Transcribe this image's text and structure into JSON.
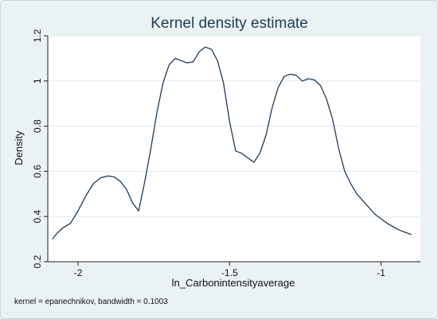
{
  "chart_data": {
    "type": "line",
    "title": "Kernel density estimate",
    "xlabel": "ln_Carbonintensityaverage",
    "ylabel": "Density",
    "note": "kernel = epanechnikov, bandwidth = 0.1003",
    "xlim": [
      -2.1,
      -0.87
    ],
    "ylim": [
      0.2,
      1.2
    ],
    "xticks": [
      -2,
      -1.5,
      -1
    ],
    "xtick_labels": [
      "-2",
      "-1.5",
      "-1"
    ],
    "yticks": [
      0.2,
      0.4,
      0.6,
      0.8,
      1,
      1.2
    ],
    "ytick_labels": [
      "0.2",
      "0.4",
      "0.6",
      "0.8",
      "1",
      "1.2"
    ],
    "grid": true,
    "legend": "none",
    "colors": {
      "plot_background": "#ffffff",
      "outer_background": "#eaf2f3",
      "gridline": "#e4eaef",
      "line": "#1f3c57",
      "title": "#1f3c57"
    },
    "series": [
      {
        "x": [
          -2.085,
          -2.07,
          -2.05,
          -2.025,
          -2.0,
          -1.975,
          -1.95,
          -1.925,
          -1.9,
          -1.88,
          -1.86,
          -1.84,
          -1.82,
          -1.8,
          -1.78,
          -1.76,
          -1.74,
          -1.72,
          -1.7,
          -1.68,
          -1.66,
          -1.64,
          -1.62,
          -1.6,
          -1.58,
          -1.56,
          -1.54,
          -1.52,
          -1.5,
          -1.48,
          -1.46,
          -1.44,
          -1.42,
          -1.4,
          -1.38,
          -1.36,
          -1.34,
          -1.32,
          -1.3,
          -1.28,
          -1.26,
          -1.24,
          -1.22,
          -1.2,
          -1.18,
          -1.16,
          -1.14,
          -1.12,
          -1.1,
          -1.08,
          -1.06,
          -1.04,
          -1.02,
          -1.0,
          -0.98,
          -0.96,
          -0.94,
          -0.92,
          -0.9,
          -0.88
        ],
        "y": [
          0.3,
          0.325,
          0.35,
          0.37,
          0.425,
          0.49,
          0.545,
          0.572,
          0.58,
          0.575,
          0.555,
          0.52,
          0.46,
          0.425,
          0.555,
          0.7,
          0.86,
          0.99,
          1.07,
          1.1,
          1.09,
          1.08,
          1.085,
          1.13,
          1.15,
          1.14,
          1.09,
          0.99,
          0.82,
          0.69,
          0.68,
          0.66,
          0.64,
          0.68,
          0.76,
          0.88,
          0.97,
          1.02,
          1.03,
          1.025,
          1.0,
          1.01,
          1.005,
          0.98,
          0.92,
          0.83,
          0.7,
          0.6,
          0.545,
          0.5,
          0.47,
          0.44,
          0.41,
          0.39,
          0.37,
          0.355,
          0.34,
          0.33,
          0.32,
          0.31
        ]
      }
    ]
  }
}
